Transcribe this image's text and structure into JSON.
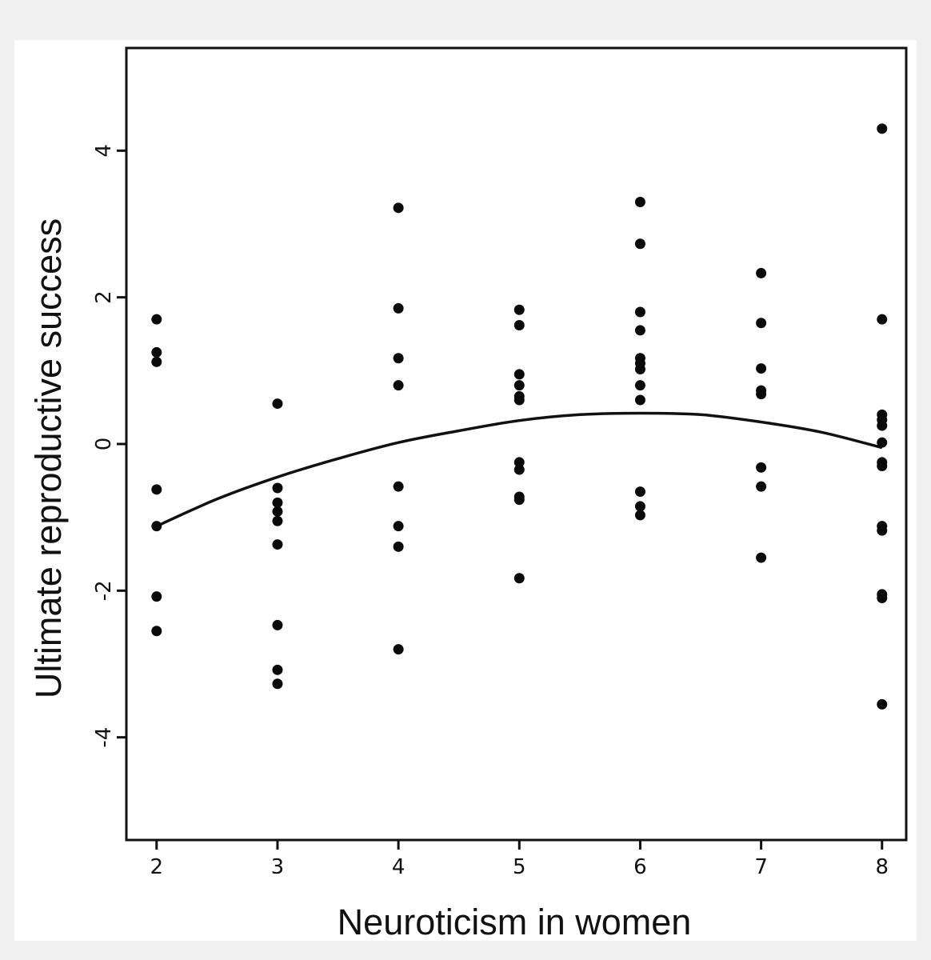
{
  "chart_data": {
    "type": "scatter",
    "title": "",
    "xlabel": "Neuroticism in women",
    "ylabel": "Ultimate reproductive success",
    "xlim": [
      1.75,
      8.2
    ],
    "ylim": [
      -5.4,
      5.4
    ],
    "x_ticks": [
      2,
      3,
      4,
      5,
      6,
      7,
      8
    ],
    "y_ticks": [
      -4,
      -2,
      0,
      2,
      4
    ],
    "x_tick_labels": [
      "2",
      "3",
      "4",
      "5",
      "6",
      "7",
      "8"
    ],
    "y_tick_labels": [
      "-4",
      "-2",
      "0",
      "2",
      "4"
    ],
    "grid": false,
    "legend": "none",
    "series": [
      {
        "type": "scatter",
        "points": [
          [
            2,
            1.7
          ],
          [
            2,
            1.25
          ],
          [
            2,
            1.12
          ],
          [
            2,
            -0.62
          ],
          [
            2,
            -1.12
          ],
          [
            2,
            -2.08
          ],
          [
            2,
            -2.55
          ],
          [
            3,
            0.55
          ],
          [
            3,
            -0.6
          ],
          [
            3,
            -0.8
          ],
          [
            3,
            -0.92
          ],
          [
            3,
            -1.05
          ],
          [
            3,
            -1.37
          ],
          [
            3,
            -2.47
          ],
          [
            3,
            -3.08
          ],
          [
            3,
            -3.27
          ],
          [
            4,
            3.22
          ],
          [
            4,
            1.85
          ],
          [
            4,
            1.17
          ],
          [
            4,
            0.8
          ],
          [
            4,
            -0.58
          ],
          [
            4,
            -1.12
          ],
          [
            4,
            -1.4
          ],
          [
            4,
            -2.8
          ],
          [
            5,
            1.83
          ],
          [
            5,
            1.62
          ],
          [
            5,
            0.95
          ],
          [
            5,
            0.8
          ],
          [
            5,
            0.65
          ],
          [
            5,
            0.6
          ],
          [
            5,
            -0.25
          ],
          [
            5,
            -0.35
          ],
          [
            5,
            -0.72
          ],
          [
            5,
            -0.76
          ],
          [
            5,
            -1.83
          ],
          [
            6,
            3.3
          ],
          [
            6,
            2.73
          ],
          [
            6,
            1.8
          ],
          [
            6,
            1.55
          ],
          [
            6,
            1.17
          ],
          [
            6,
            1.1
          ],
          [
            6,
            1.02
          ],
          [
            6,
            0.8
          ],
          [
            6,
            0.6
          ],
          [
            6,
            -0.65
          ],
          [
            6,
            -0.85
          ],
          [
            6,
            -0.97
          ],
          [
            7,
            2.33
          ],
          [
            7,
            1.65
          ],
          [
            7,
            1.03
          ],
          [
            7,
            0.73
          ],
          [
            7,
            0.68
          ],
          [
            7,
            -0.32
          ],
          [
            7,
            -0.58
          ],
          [
            7,
            -1.55
          ],
          [
            8,
            4.3
          ],
          [
            8,
            1.7
          ],
          [
            8,
            0.4
          ],
          [
            8,
            0.33
          ],
          [
            8,
            0.25
          ],
          [
            8,
            0.02
          ],
          [
            8,
            -0.25
          ],
          [
            8,
            -0.3
          ],
          [
            8,
            -1.12
          ],
          [
            8,
            -1.18
          ],
          [
            8,
            -2.05
          ],
          [
            8,
            -2.1
          ],
          [
            8,
            -3.55
          ]
        ]
      },
      {
        "type": "line",
        "x": [
          2,
          2.5,
          3,
          3.5,
          4,
          4.5,
          5,
          5.5,
          6,
          6.5,
          7,
          7.5,
          8
        ],
        "y": [
          -1.12,
          -0.75,
          -0.45,
          -0.2,
          0.02,
          0.18,
          0.32,
          0.4,
          0.42,
          0.4,
          0.3,
          0.16,
          -0.05
        ]
      }
    ]
  }
}
